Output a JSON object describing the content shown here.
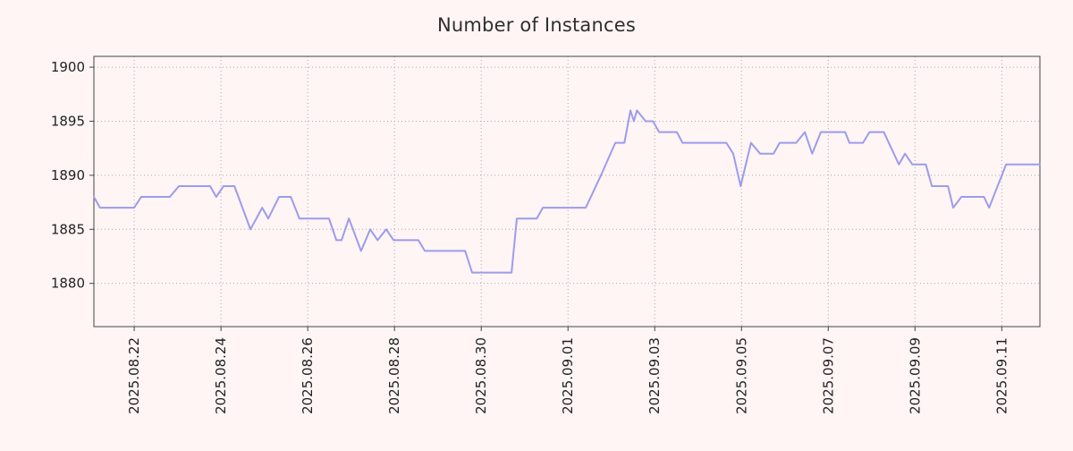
{
  "chart_data": {
    "type": "line",
    "title": "Number of Instances",
    "xlabel": "",
    "ylabel": "",
    "legend": "none",
    "grid": "dotted",
    "x_unit": "days from plot left edge",
    "xlim": [
      0,
      21.81
    ],
    "ylim": [
      1876,
      1901
    ],
    "yticks": [
      1880,
      1885,
      1890,
      1895,
      1900
    ],
    "xtick_positions": [
      0.93,
      2.93,
      4.93,
      6.93,
      8.93,
      10.93,
      12.93,
      14.93,
      16.93,
      18.93,
      20.93
    ],
    "xtick_labels": [
      "2025.08.22",
      "2025.08.24",
      "2025.08.26",
      "2025.08.28",
      "2025.08.30",
      "2025.09.01",
      "2025.09.03",
      "2025.09.05",
      "2025.09.07",
      "2025.09.09",
      "2025.09.11"
    ],
    "x": [
      0.0,
      0.14,
      0.93,
      1.09,
      1.75,
      1.96,
      2.68,
      2.82,
      2.99,
      3.24,
      3.61,
      3.88,
      4.02,
      4.27,
      4.54,
      4.74,
      5.42,
      5.59,
      5.71,
      5.88,
      6.16,
      6.37,
      6.54,
      6.74,
      6.91,
      7.48,
      7.63,
      8.56,
      8.72,
      9.63,
      9.75,
      10.21,
      10.35,
      11.34,
      11.69,
      12.02,
      12.23,
      12.37,
      12.45,
      12.52,
      12.72,
      12.89,
      13.03,
      13.44,
      13.57,
      14.43,
      14.58,
      14.74,
      14.91,
      15.15,
      15.36,
      15.67,
      15.81,
      16.19,
      16.39,
      16.56,
      16.76,
      17.32,
      17.42,
      17.73,
      17.88,
      18.21,
      18.56,
      18.7,
      18.87,
      19.18,
      19.32,
      19.69,
      19.81,
      20.0,
      20.52,
      20.64,
      21.03,
      21.81
    ],
    "values": [
      1888,
      1887,
      1887,
      1888,
      1888,
      1889,
      1889,
      1888,
      1889,
      1889,
      1885,
      1887,
      1886,
      1888,
      1888,
      1886,
      1886,
      1884,
      1884,
      1886,
      1883,
      1885,
      1884,
      1885,
      1884,
      1884,
      1883,
      1883,
      1881,
      1881,
      1886,
      1886,
      1887,
      1887,
      1890,
      1893,
      1893,
      1896,
      1895,
      1896,
      1895,
      1895,
      1894,
      1894,
      1893,
      1893,
      1893,
      1892,
      1889,
      1893,
      1892,
      1892,
      1893,
      1893,
      1894,
      1892,
      1894,
      1894,
      1893,
      1893,
      1894,
      1894,
      1891,
      1892,
      1891,
      1891,
      1889,
      1889,
      1887,
      1888,
      1888,
      1887,
      1891,
      1891
    ]
  },
  "colors": {
    "background": "#fff5f5",
    "line": "#9c9cec",
    "grid": "#aaaaaa",
    "axis": "#444444",
    "tick_text": "#222222",
    "title_text": "#2e2e2e"
  }
}
